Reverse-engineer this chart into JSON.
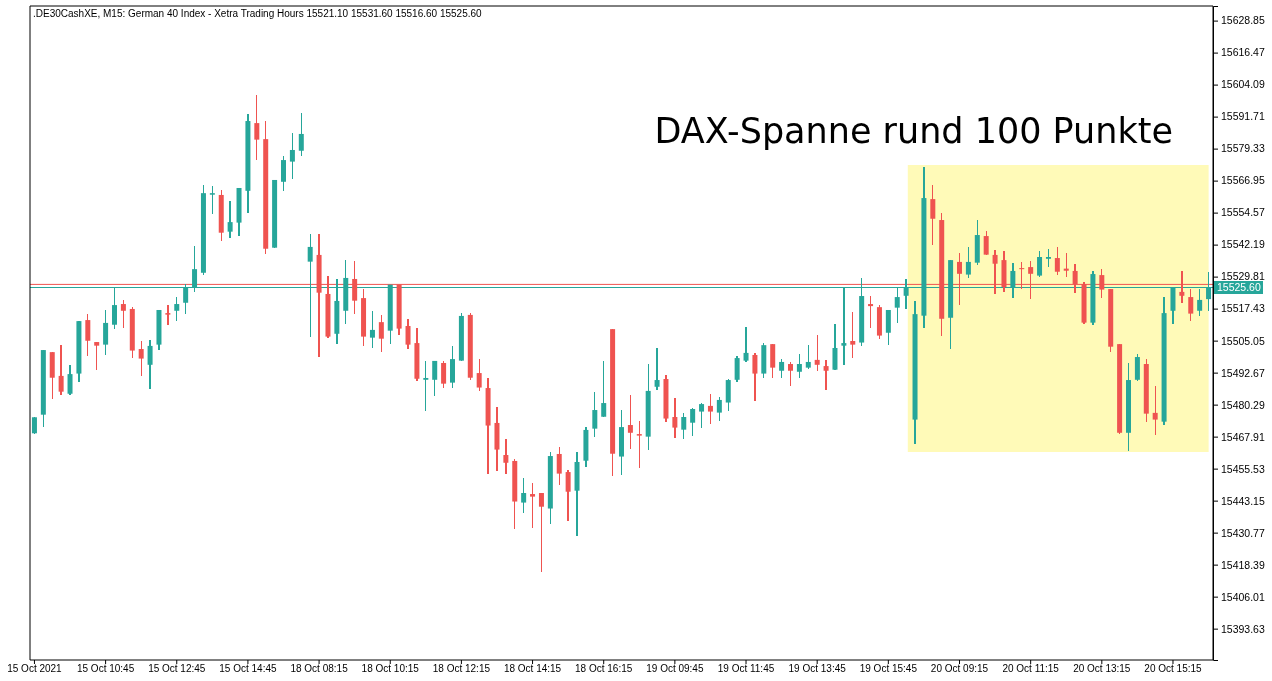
{
  "chart_data": {
    "type": "candlestick",
    "title": ".DE30CashXE, M15:  German 40 Index - Xetra Trading Hours  15521.10 15531.60 15516.60 15525.60",
    "annotations": [
      "DAX-Spanne rund 100 Punkte"
    ],
    "categories": [
      "15 Oct 2021",
      null,
      null,
      null,
      null,
      null,
      null,
      null,
      "15 Oct 10:45",
      null,
      null,
      null,
      null,
      null,
      null,
      null,
      "15 Oct 12:45",
      null,
      null,
      null,
      null,
      null,
      null,
      null,
      "15 Oct 14:45",
      null,
      null,
      null,
      null,
      null,
      null,
      null,
      "18 Oct 08:15",
      null,
      null,
      null,
      null,
      null,
      null,
      null,
      "18 Oct 10:15",
      null,
      null,
      null,
      null,
      null,
      null,
      null,
      "18 Oct 12:15",
      null,
      null,
      null,
      null,
      null,
      null,
      null,
      "18 Oct 14:15",
      null,
      null,
      null,
      null,
      null,
      null,
      null,
      "18 Oct 16:15",
      null,
      null,
      null,
      null,
      null,
      null,
      null,
      "19 Oct 09:45",
      null,
      null,
      null,
      null,
      null,
      null,
      null,
      "19 Oct 11:45",
      null,
      null,
      null,
      null,
      null,
      null,
      null,
      "19 Oct 13:45",
      null,
      null,
      null,
      null,
      null,
      null,
      null,
      "19 Oct 15:45",
      null,
      null,
      null,
      null,
      null,
      null,
      null,
      "20 Oct 09:15",
      null,
      null,
      null,
      null,
      null,
      null,
      null,
      "20 Oct 11:15",
      null,
      null,
      null,
      null,
      null,
      null,
      null,
      "20 Oct 13:15",
      null,
      null,
      null,
      null,
      null,
      null,
      null,
      "20 Oct 15:15",
      null,
      null,
      null,
      null
    ],
    "ohlc": [
      [
        15469.2,
        15475.6,
        15468.9,
        15475.4
      ],
      [
        15476.4,
        15501.4,
        15471.8,
        15501.4
      ],
      [
        15500.6,
        15500.6,
        15482.6,
        15490.7
      ],
      [
        15491.4,
        15503.3,
        15484.1,
        15485.3
      ],
      [
        15484.5,
        15495.6,
        15484.1,
        15492.1
      ],
      [
        15492.3,
        15512.6,
        15489.2,
        15512.6
      ],
      [
        15513.0,
        15515.3,
        15499.2,
        15505.0
      ],
      [
        15504.5,
        15504.5,
        15493.8,
        15503.1
      ],
      [
        15503.5,
        15516.9,
        15499.6,
        15511.9
      ],
      [
        15511.2,
        15525.7,
        15509.7,
        15518.8
      ],
      [
        15519.2,
        15520.8,
        15510.1,
        15516.6
      ],
      [
        15517.3,
        15518.0,
        15498.5,
        15501.2
      ],
      [
        15501.8,
        15504.9,
        15491.5,
        15498.1
      ],
      [
        15495.7,
        15505.3,
        15486.5,
        15503.0
      ],
      [
        15503.5,
        15516.9,
        15501.5,
        15516.9
      ],
      [
        15515.7,
        15518.8,
        15511.2,
        15515.1
      ],
      [
        15516.6,
        15521.9,
        15512.8,
        15519.2
      ],
      [
        15519.7,
        15526.9,
        15515.5,
        15525.7
      ],
      [
        15525.8,
        15541.6,
        15524.0,
        15532.7
      ],
      [
        15531.3,
        15565.2,
        15530.6,
        15562.1
      ],
      [
        15561.5,
        15564.8,
        15554.1,
        15562.1
      ],
      [
        15561.4,
        15563.3,
        15543.7,
        15546.8
      ],
      [
        15547.2,
        15559.2,
        15544.9,
        15550.9
      ],
      [
        15550.7,
        15564.1,
        15545.6,
        15564.1
      ],
      [
        15563.0,
        15592.8,
        15554.5,
        15590.0
      ],
      [
        15589.2,
        15600.0,
        15575.0,
        15582.8
      ],
      [
        15583.0,
        15590.0,
        15538.7,
        15540.6
      ],
      [
        15541.0,
        15567.2,
        15541.0,
        15567.2
      ],
      [
        15566.5,
        15576.5,
        15563.0,
        15574.9
      ],
      [
        15574.3,
        15585.3,
        15567.7,
        15578.8
      ],
      [
        15578.5,
        15593.1,
        15576.6,
        15585.0
      ],
      [
        15535.6,
        15546.3,
        15506.6,
        15541.3
      ],
      [
        15538.2,
        15546.3,
        15498.8,
        15523.6
      ],
      [
        15523.1,
        15530.0,
        15506.2,
        15506.6
      ],
      [
        15507.7,
        15528.9,
        15503.9,
        15520.4
      ],
      [
        15516.6,
        15536.2,
        15511.6,
        15529.3
      ],
      [
        15528.9,
        15535.8,
        15515.5,
        15520.5
      ],
      [
        15521.5,
        15525.0,
        15503.1,
        15506.6
      ],
      [
        15506.2,
        15516.5,
        15502.3,
        15509.2
      ],
      [
        15512.2,
        15515.0,
        15500.8,
        15505.8
      ],
      [
        15508.9,
        15526.7,
        15503.9,
        15526.7
      ],
      [
        15526.7,
        15526.7,
        15507.4,
        15509.7
      ],
      [
        15510.7,
        15513.4,
        15501.9,
        15503.5
      ],
      [
        15504.1,
        15509.9,
        15489.6,
        15490.3
      ],
      [
        15489.9,
        15497.2,
        15478.0,
        15490.6
      ],
      [
        15489.9,
        15497.2,
        15483.8,
        15497.2
      ],
      [
        15496.4,
        15497.2,
        15486.9,
        15488.4
      ],
      [
        15488.8,
        15503.0,
        15486.9,
        15497.9
      ],
      [
        15497.3,
        15515.7,
        15497.3,
        15514.6
      ],
      [
        15515.0,
        15515.7,
        15489.9,
        15490.7
      ],
      [
        15492.5,
        15497.9,
        15485.7,
        15486.9
      ],
      [
        15486.7,
        15490.6,
        15453.6,
        15472.2
      ],
      [
        15473.2,
        15479.5,
        15454.8,
        15462.9
      ],
      [
        15460.8,
        15467.0,
        15453.6,
        15457.8
      ],
      [
        15458.5,
        15459.3,
        15432.3,
        15442.8
      ],
      [
        15442.4,
        15451.9,
        15438.5,
        15446.1
      ],
      [
        15445.7,
        15450.0,
        15432.7,
        15444.7
      ],
      [
        15446.1,
        15446.1,
        15415.7,
        15440.8
      ],
      [
        15440.1,
        15462.0,
        15434.3,
        15460.4
      ],
      [
        15461.2,
        15463.9,
        15449.3,
        15453.6
      ],
      [
        15454.2,
        15455.0,
        15435.4,
        15446.6
      ],
      [
        15447.0,
        15462.0,
        15429.6,
        15458.1
      ],
      [
        15458.6,
        15471.6,
        15456.3,
        15470.5
      ],
      [
        15471.0,
        15485.2,
        15467.9,
        15478.2
      ],
      [
        15475.6,
        15497.2,
        15475.6,
        15480.9
      ],
      [
        15509.5,
        15509.5,
        15452.8,
        15461.3
      ],
      [
        15460.2,
        15478.2,
        15453.2,
        15471.6
      ],
      [
        15472.4,
        15484.0,
        15463.3,
        15469.4
      ],
      [
        15468.9,
        15474.0,
        15455.9,
        15468.3
      ],
      [
        15467.9,
        15496.0,
        15462.9,
        15485.6
      ],
      [
        15487.2,
        15502.2,
        15486.1,
        15489.8
      ],
      [
        15490.2,
        15491.8,
        15473.7,
        15474.9
      ],
      [
        15475.5,
        15482.9,
        15467.5,
        15471.4
      ],
      [
        15470.6,
        15477.1,
        15467.1,
        15475.5
      ],
      [
        15473.3,
        15479.0,
        15468.3,
        15478.6
      ],
      [
        15477.6,
        15480.9,
        15471.4,
        15480.5
      ],
      [
        15479.8,
        15484.4,
        15472.9,
        15477.6
      ],
      [
        15477.2,
        15483.2,
        15474.1,
        15482.1
      ],
      [
        15481.1,
        15490.2,
        15478.0,
        15489.8
      ],
      [
        15489.9,
        15499.1,
        15489.2,
        15498.3
      ],
      [
        15497.3,
        15510.3,
        15496.9,
        15500.3
      ],
      [
        15499.5,
        15500.3,
        15481.8,
        15492.3
      ],
      [
        15492.3,
        15504.1,
        15490.7,
        15503.3
      ],
      [
        15503.7,
        15503.7,
        15490.7,
        15494.6
      ],
      [
        15493.4,
        15497.9,
        15490.7,
        15496.8
      ],
      [
        15496.0,
        15496.8,
        15487.6,
        15493.4
      ],
      [
        15493.0,
        15499.9,
        15490.7,
        15496.0
      ],
      [
        15494.6,
        15503.3,
        15494.2,
        15496.8
      ],
      [
        15497.6,
        15507.2,
        15493.4,
        15495.7
      ],
      [
        15495.2,
        15497.6,
        15486.1,
        15493.4
      ],
      [
        15493.8,
        15511.5,
        15493.8,
        15502.2
      ],
      [
        15503.1,
        15525.7,
        15495.7,
        15504.1
      ],
      [
        15504.9,
        15516.1,
        15498.5,
        15503.5
      ],
      [
        15504.3,
        15529.3,
        15503.1,
        15522.3
      ],
      [
        15519.2,
        15522.3,
        15509.9,
        15518.4
      ],
      [
        15518.0,
        15518.8,
        15505.8,
        15507.0
      ],
      [
        15508.1,
        15516.9,
        15503.5,
        15516.9
      ],
      [
        15517.8,
        15525.4,
        15512.0,
        15521.9
      ],
      [
        15522.4,
        15528.9,
        15517.4,
        15525.4
      ],
      [
        15474.5,
        15520.4,
        15465.2,
        15515.3
      ],
      [
        15514.7,
        15572.2,
        15510.1,
        15560.2
      ],
      [
        15559.8,
        15565.2,
        15542.2,
        15552.2
      ],
      [
        15551.7,
        15554.4,
        15507.0,
        15513.5
      ],
      [
        15513.9,
        15536.2,
        15501.9,
        15536.2
      ],
      [
        15535.5,
        15538.9,
        15519.0,
        15530.9
      ],
      [
        15530.6,
        15541.3,
        15529.4,
        15535.5
      ],
      [
        15535.2,
        15551.7,
        15534.4,
        15545.9
      ],
      [
        15545.5,
        15547.4,
        15538.3,
        15538.3
      ],
      [
        15538.2,
        15540.1,
        15523.2,
        15534.8
      ],
      [
        15536.2,
        15539.7,
        15524.0,
        15525.8
      ],
      [
        15525.8,
        15535.1,
        15521.7,
        15532.0
      ],
      [
        15533.1,
        15535.5,
        15525.1,
        15532.7
      ],
      [
        15533.5,
        15535.8,
        15521.3,
        15530.9
      ],
      [
        15530.2,
        15539.7,
        15529.8,
        15537.4
      ],
      [
        15536.7,
        15540.5,
        15533.6,
        15537.4
      ],
      [
        15537.0,
        15541.3,
        15530.6,
        15531.7
      ],
      [
        15532.9,
        15538.9,
        15529.8,
        15532.1
      ],
      [
        15532.0,
        15534.7,
        15523.6,
        15526.9
      ],
      [
        15526.9,
        15527.7,
        15511.6,
        15512.0
      ],
      [
        15512.0,
        15532.0,
        15511.2,
        15530.8
      ],
      [
        15530.4,
        15532.7,
        15521.7,
        15524.8
      ],
      [
        15525.0,
        15525.0,
        15500.8,
        15502.7
      ],
      [
        15503.7,
        15503.7,
        15469.1,
        15469.4
      ],
      [
        15469.4,
        15496.4,
        15462.5,
        15489.8
      ],
      [
        15489.9,
        15499.9,
        15489.6,
        15498.7
      ],
      [
        15496.0,
        15497.9,
        15473.7,
        15476.8
      ],
      [
        15477.1,
        15487.5,
        15468.7,
        15474.5
      ],
      [
        15473.7,
        15521.9,
        15472.5,
        15515.7
      ],
      [
        15516.6,
        15525.5,
        15511.6,
        15525.5
      ],
      [
        15523.9,
        15532.0,
        15519.7,
        15522.4
      ],
      [
        15521.9,
        15525.0,
        15512.8,
        15515.5
      ],
      [
        15516.6,
        15525.0,
        15514.7,
        15520.8
      ],
      [
        15521.1,
        15531.6,
        15516.6,
        15525.6
      ]
    ],
    "colors": [
      "#26a69a",
      "#26a69a",
      "#ef5350",
      "#ef5350",
      "#26a69a",
      "#26a69a",
      "#ef5350",
      "#ef5350",
      "#26a69a",
      "#26a69a",
      "#ef5350",
      "#ef5350",
      "#ef5350",
      "#26a69a",
      "#26a69a",
      "#ef5350",
      "#26a69a",
      "#26a69a",
      "#26a69a",
      "#26a69a",
      "#26a69a",
      "#ef5350",
      "#26a69a",
      "#26a69a",
      "#26a69a",
      "#ef5350",
      "#ef5350",
      "#26a69a",
      "#26a69a",
      "#26a69a",
      "#26a69a",
      "#26a69a",
      "#ef5350",
      "#ef5350",
      "#26a69a",
      "#26a69a",
      "#ef5350",
      "#ef5350",
      "#26a69a",
      "#ef5350",
      "#26a69a",
      "#ef5350",
      "#ef5350",
      "#ef5350",
      "#26a69a",
      "#26a69a",
      "#ef5350",
      "#26a69a",
      "#26a69a",
      "#ef5350",
      "#ef5350",
      "#ef5350",
      "#ef5350",
      "#ef5350",
      "#ef5350",
      "#26a69a",
      "#ef5350",
      "#ef5350",
      "#26a69a",
      "#ef5350",
      "#ef5350",
      "#26a69a",
      "#26a69a",
      "#26a69a",
      "#26a69a",
      "#ef5350",
      "#26a69a",
      "#ef5350",
      "#ef5350",
      "#26a69a",
      "#26a69a",
      "#ef5350",
      "#ef5350",
      "#26a69a",
      "#26a69a",
      "#26a69a",
      "#ef5350",
      "#26a69a",
      "#26a69a",
      "#26a69a",
      "#26a69a",
      "#ef5350",
      "#26a69a",
      "#ef5350",
      "#26a69a",
      "#ef5350",
      "#26a69a",
      "#26a69a",
      "#ef5350",
      "#ef5350",
      "#26a69a",
      "#26a69a",
      "#ef5350",
      "#26a69a",
      "#ef5350",
      "#ef5350",
      "#26a69a",
      "#26a69a",
      "#26a69a",
      "#26a69a",
      "#26a69a",
      "#ef5350",
      "#ef5350",
      "#26a69a",
      "#ef5350",
      "#26a69a",
      "#26a69a",
      "#ef5350",
      "#ef5350",
      "#ef5350",
      "#26a69a",
      "#ef5350",
      "#ef5350",
      "#26a69a",
      "#26a69a",
      "#ef5350",
      "#ef5350",
      "#ef5350",
      "#ef5350",
      "#26a69a",
      "#ef5350",
      "#ef5350",
      "#ef5350",
      "#26a69a",
      "#26a69a",
      "#ef5350",
      "#ef5350",
      "#26a69a",
      "#26a69a",
      "#ef5350",
      "#ef5350",
      "#26a69a",
      "#26a69a"
    ],
    "ylim": [
      15381.5,
      15634.5
    ],
    "yticks": [
      15393.63,
      15406.01,
      15418.39,
      15430.77,
      15443.15,
      15455.53,
      15467.91,
      15480.29,
      15492.67,
      15505.05,
      15517.43,
      15529.81,
      15542.19,
      15554.57,
      15566.95,
      15579.33,
      15591.71,
      15604.09,
      15616.47,
      15628.85
    ],
    "ref_lines": [
      {
        "axis": "y",
        "value": 15526.8,
        "color": "#ef5350"
      },
      {
        "axis": "y",
        "value": 15525.6,
        "label": "15525.60",
        "color": "#26a69a"
      }
    ]
  }
}
